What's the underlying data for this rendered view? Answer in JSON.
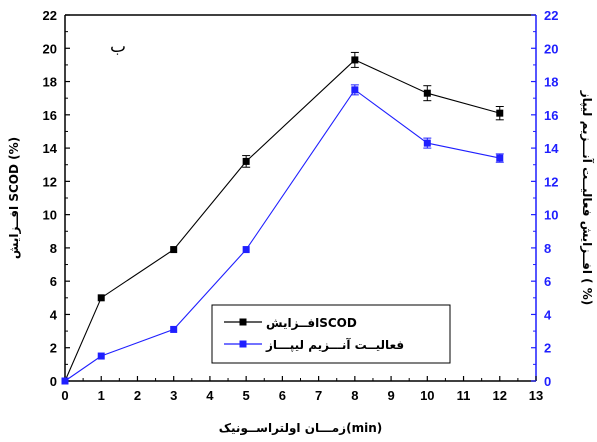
{
  "chart_data": {
    "type": "line",
    "panel_label": "ب",
    "xlabel": "زمـــان اولتراســونیک(min)",
    "ylabel_left": "افــزایش SCOD (%)",
    "ylabel_right": "افــزایش فعالیــت آنـــزیم لیپاز ( %)",
    "xlim": [
      0,
      13
    ],
    "ylim_left": [
      0,
      22
    ],
    "ylim_right": [
      0,
      22
    ],
    "x_ticks": [
      0,
      1,
      2,
      3,
      4,
      5,
      6,
      7,
      8,
      9,
      10,
      11,
      12,
      13
    ],
    "y_ticks": [
      0,
      2,
      4,
      6,
      8,
      10,
      12,
      14,
      16,
      18,
      20,
      22
    ],
    "grid": false,
    "legend_position": "bottom-right",
    "series": [
      {
        "name": "افــزایشSCOD",
        "axis": "left",
        "color": "#000000",
        "marker": "square",
        "x": [
          0,
          1,
          3,
          5,
          8,
          10,
          12
        ],
        "y": [
          0,
          5.0,
          7.9,
          13.2,
          19.3,
          17.3,
          16.1
        ],
        "error": [
          0,
          0,
          0,
          0.35,
          0.45,
          0.45,
          0.4
        ]
      },
      {
        "name": "فعالیــت آنـــزیم لیپـــاز",
        "axis": "right",
        "color": "#1f1fff",
        "marker": "square",
        "x": [
          0,
          1,
          3,
          5,
          8,
          10,
          12
        ],
        "y": [
          0,
          1.5,
          3.1,
          7.9,
          17.5,
          14.3,
          13.4
        ],
        "error": [
          0,
          0,
          0,
          0,
          0.3,
          0.3,
          0.25
        ]
      }
    ]
  },
  "colors": {
    "left_axis": "#000000",
    "right_axis": "#1f1fff"
  }
}
